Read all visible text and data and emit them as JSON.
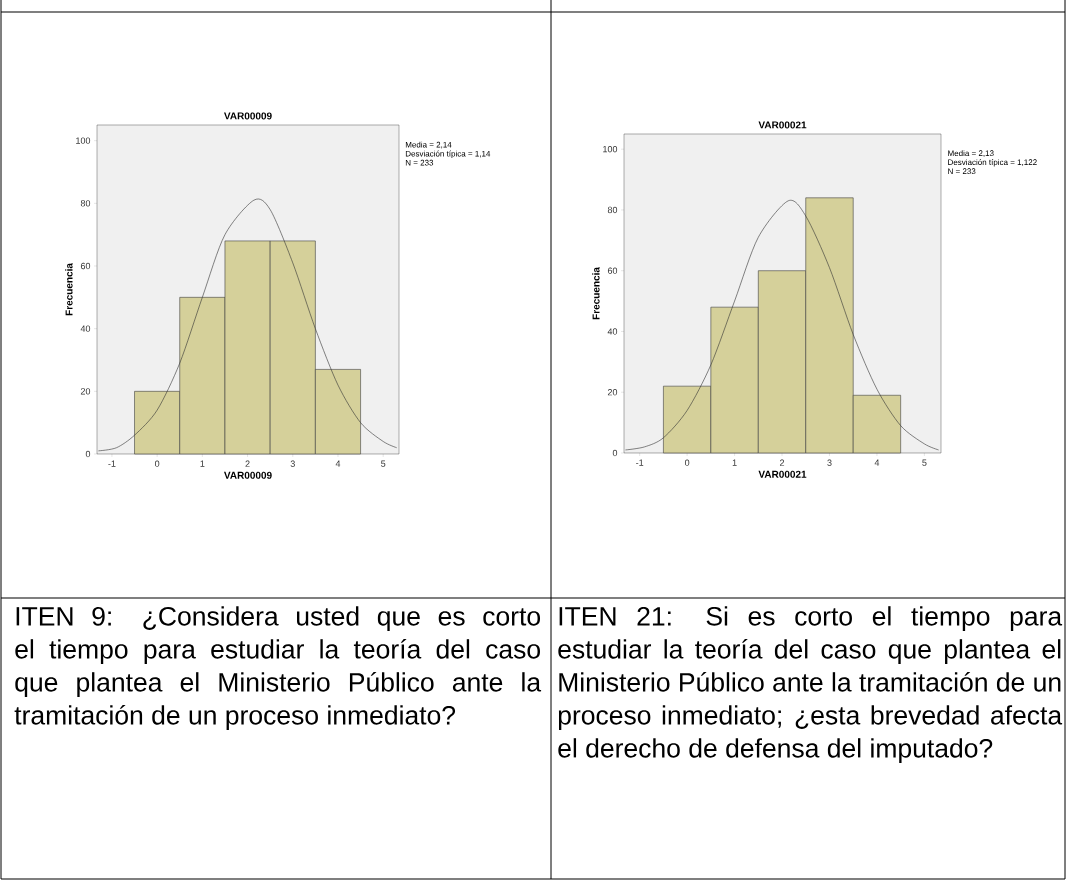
{
  "chart_data": [
    {
      "type": "histogram",
      "title": "VAR00009",
      "xlabel": "VAR00009",
      "ylabel": "Frecuencia",
      "annotations": [
        "Media = 2,14",
        "Desviación típica = 1,14",
        "N = 233",
        "ITEN 9: ¿Considera usted que es corto el tiempo para estudiar la teoría del caso que plantea el Ministerio Público ante la tramitación de un proceso inmediato?"
      ],
      "series": [
        {
          "color": "#d5d09a",
          "bins": [
            -0.5,
            0.5,
            1.5,
            2.5,
            3.5,
            4.5
          ],
          "values": [
            20,
            50,
            68,
            68,
            27
          ]
        },
        {
          "type": "line",
          "color": "#333333",
          "x": [
            -1.3,
            -0.9,
            -0.5,
            0,
            0.5,
            1,
            1.5,
            2.14,
            2.5,
            3,
            3.5,
            4,
            4.5,
            5,
            5.3
          ],
          "values": [
            1,
            2,
            6,
            14,
            29,
            50,
            70,
            81,
            78,
            61,
            40,
            22,
            10,
            4,
            2
          ]
        }
      ],
      "xlim": [
        -1.33,
        5.35
      ],
      "ylim": [
        0,
        105
      ],
      "xticks": [
        -1,
        0,
        1,
        2,
        3,
        4,
        5
      ],
      "yticks": [
        0,
        20,
        40,
        60,
        80,
        100
      ]
    },
    {
      "type": "histogram",
      "title": "VAR00021",
      "xlabel": "VAR00021",
      "ylabel": "Frecuencia",
      "annotations": [
        "Media = 2,13",
        "Desviación típica = 1,122",
        "N = 233",
        "ITEN 21: Si es corto el tiempo para estudiar la teoría del caso que plantea el Ministerio Público ante la tramitación de un proceso inmediato; ¿esta brevedad afecta el derecho de defensa del imputado?"
      ],
      "series": [
        {
          "color": "#d5d09a",
          "bins": [
            -0.5,
            0.5,
            1.5,
            2.5,
            3.5,
            4.5
          ],
          "values": [
            22,
            48,
            60,
            84,
            19
          ]
        },
        {
          "type": "line",
          "color": "#333333",
          "x": [
            -1.3,
            -0.9,
            -0.5,
            0,
            0.5,
            1,
            1.5,
            2.13,
            2.5,
            3,
            3.5,
            4,
            4.5,
            5,
            5.3
          ],
          "values": [
            1,
            2,
            5,
            14,
            29,
            50,
            71,
            83,
            78,
            61,
            39,
            21,
            9,
            3,
            1
          ]
        }
      ],
      "xlim": [
        -1.33,
        5.35
      ],
      "ylim": [
        0,
        105
      ],
      "xticks": [
        -1,
        0,
        1,
        2,
        3,
        4,
        5
      ],
      "yticks": [
        0,
        20,
        40,
        60,
        80,
        100
      ]
    }
  ]
}
